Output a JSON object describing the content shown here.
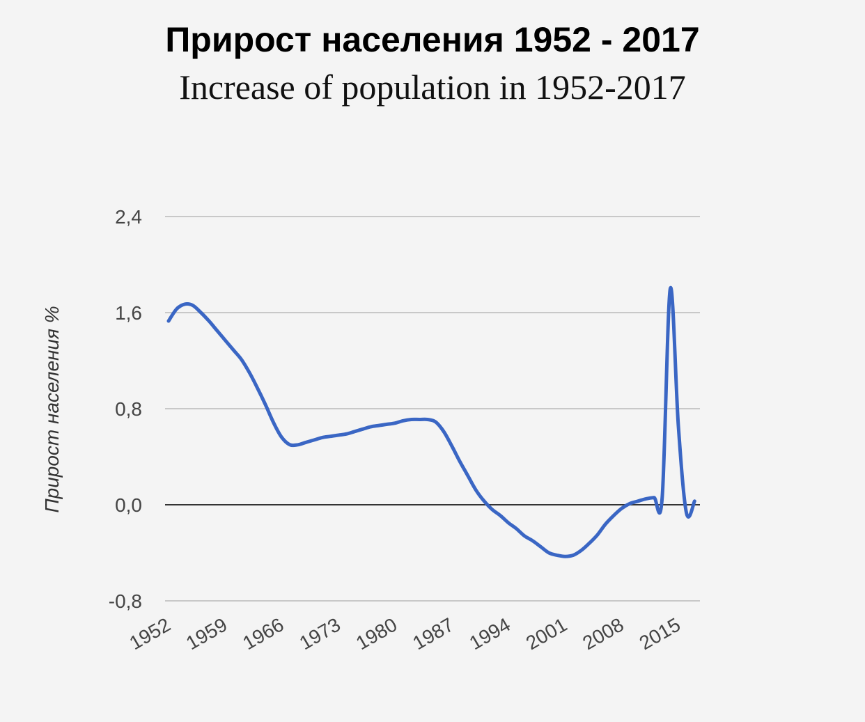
{
  "header": {
    "title": "Прирост населения 1952 - 2017",
    "subtitle": "Increase of population in 1952-2017"
  },
  "chart_data": {
    "type": "line",
    "title": "Прирост населения 1952 - 2017",
    "subtitle": "Increase of population in 1952-2017",
    "xlabel": "",
    "ylabel": "Прирост населения %",
    "x_ticks": [
      "1952",
      "1959",
      "1966",
      "1973",
      "1980",
      "1987",
      "1994",
      "2001",
      "2008",
      "2015"
    ],
    "y_ticks": [
      "2,4",
      "1,6",
      "0,8",
      "0,0",
      "-0,8"
    ],
    "ylim": [
      -0.8,
      2.4
    ],
    "xlim": [
      1952,
      2018
    ],
    "grid": true,
    "line_color": "#3a66c4",
    "series": [
      {
        "x": [
          1952,
          1953,
          1954,
          1955,
          1956,
          1957,
          1958,
          1959,
          1960,
          1961,
          1962,
          1963,
          1964,
          1965,
          1966,
          1967,
          1968,
          1969,
          1970,
          1971,
          1972,
          1973,
          1974,
          1975,
          1976,
          1977,
          1978,
          1979,
          1980,
          1981,
          1982,
          1983,
          1984,
          1985,
          1986,
          1987,
          1988,
          1989,
          1990,
          1991,
          1992,
          1993,
          1994,
          1995,
          1996,
          1997,
          1998,
          1999,
          2000,
          2001,
          2002,
          2003,
          2004,
          2005,
          2006,
          2007,
          2008,
          2009,
          2010,
          2011,
          2012,
          2013,
          2014,
          2015,
          2016,
          2017
        ],
        "y": [
          1.53,
          1.63,
          1.67,
          1.66,
          1.6,
          1.53,
          1.45,
          1.37,
          1.29,
          1.21,
          1.1,
          0.97,
          0.83,
          0.68,
          0.56,
          0.5,
          0.5,
          0.52,
          0.54,
          0.56,
          0.57,
          0.58,
          0.59,
          0.61,
          0.63,
          0.65,
          0.66,
          0.67,
          0.68,
          0.7,
          0.71,
          0.71,
          0.71,
          0.69,
          0.61,
          0.49,
          0.36,
          0.24,
          0.12,
          0.03,
          -0.04,
          -0.09,
          -0.15,
          -0.2,
          -0.26,
          -0.3,
          -0.35,
          -0.4,
          -0.42,
          -0.43,
          -0.42,
          -0.38,
          -0.32,
          -0.25,
          -0.16,
          -0.09,
          -0.03,
          0.01,
          0.03,
          0.05,
          0.06,
          0.06,
          1.8,
          0.65,
          -0.07,
          0.03
        ]
      }
    ]
  }
}
